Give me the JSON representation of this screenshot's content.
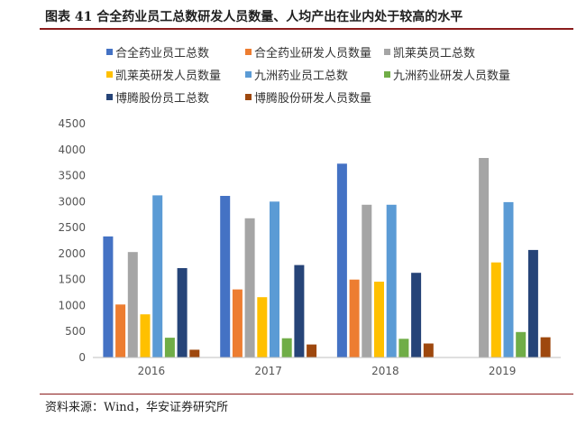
{
  "header": {
    "title": "图表 41 合全药业员工总数研发人员数量、人均产出在业内处于较高的水平"
  },
  "footer": {
    "source": "资料来源：Wind，华安证券研究所"
  },
  "chart_data": {
    "type": "bar",
    "categories": [
      "2016",
      "2017",
      "2018",
      "2019"
    ],
    "ylim": [
      0,
      4500
    ],
    "yticks": [
      0,
      500,
      1000,
      1500,
      2000,
      2500,
      3000,
      3500,
      4000,
      4500
    ],
    "grid": false,
    "legend_position": "top",
    "series": [
      {
        "name": "合全药业员工总数",
        "color": "#4472C4",
        "values": [
          2330,
          3110,
          3730,
          null
        ]
      },
      {
        "name": "合全药业研发人员数量",
        "color": "#ED7D31",
        "values": [
          1020,
          1310,
          1500,
          null
        ]
      },
      {
        "name": "凯莱英员工总数",
        "color": "#A5A5A5",
        "values": [
          2030,
          2680,
          2940,
          3840
        ]
      },
      {
        "name": "凯莱英研发人员数量",
        "color": "#FFC000",
        "values": [
          830,
          1160,
          1460,
          1830
        ]
      },
      {
        "name": "九洲药业员工总数",
        "color": "#5B9BD5",
        "values": [
          3120,
          3000,
          2940,
          2990
        ]
      },
      {
        "name": "九洲药业研发人员数量",
        "color": "#70AD47",
        "values": [
          380,
          370,
          360,
          490
        ]
      },
      {
        "name": "博腾股份员工总数",
        "color": "#264478",
        "values": [
          1720,
          1780,
          1630,
          2070
        ]
      },
      {
        "name": "博腾股份研发人员数量",
        "color": "#9E480E",
        "values": [
          150,
          250,
          270,
          390
        ]
      }
    ]
  }
}
